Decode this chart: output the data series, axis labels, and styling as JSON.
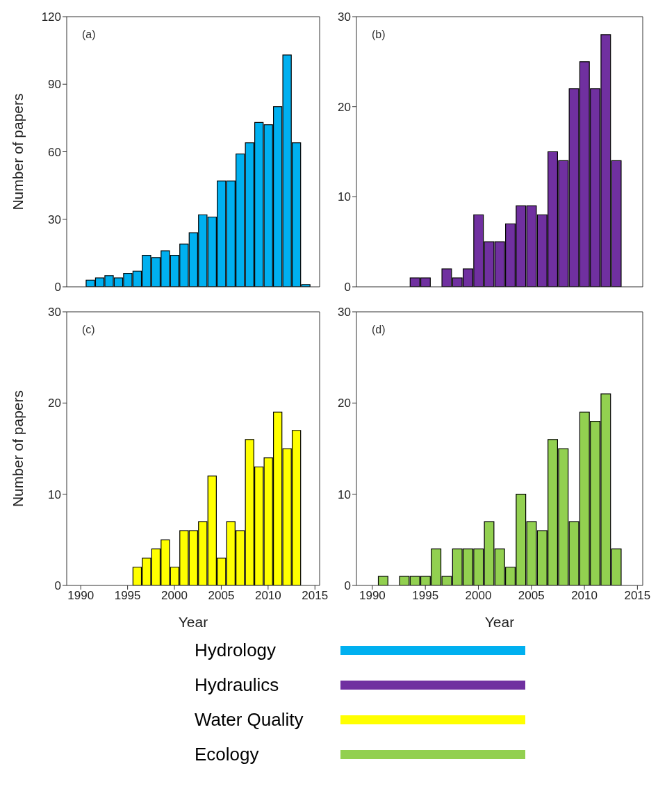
{
  "chart_data": [
    {
      "type": "histogram",
      "title": "(a)",
      "ylabel": "Number of papers",
      "bins": [
        1990.5,
        1991.5,
        1992.5,
        1993.5,
        1994.5,
        1995.5,
        1996.5,
        1997.5,
        1998.5,
        1999.5,
        2000.5,
        2001.5,
        2002.5,
        2003.5,
        2004.5,
        2005.5,
        2006.5,
        2007.5,
        2008.5,
        2009.5,
        2010.5,
        2011.5,
        2012.5,
        2013.5,
        2014.5
      ],
      "series": [
        {
          "name": "Hydrology",
          "color": "#00b0f0",
          "values": [
            3,
            4,
            5,
            4,
            6,
            7,
            14,
            13,
            16,
            14,
            19,
            24,
            32,
            31,
            47,
            47,
            59,
            64,
            73,
            72,
            80,
            103,
            64,
            1
          ]
        }
      ],
      "xlim": [
        1988.5,
        2015.5
      ],
      "xticks": [
        1990,
        1995,
        2000,
        2005,
        2010,
        2015
      ],
      "ylim": [
        0,
        120
      ],
      "yticks": [
        0,
        30,
        60,
        90,
        120
      ],
      "tick_labels": "y",
      "legend": "bottom"
    },
    {
      "type": "histogram",
      "title": "(b)",
      "bins": [
        1993.5,
        1994.5,
        1995.5,
        1996.5,
        1997.5,
        1998.5,
        1999.5,
        2000.5,
        2001.5,
        2002.5,
        2003.5,
        2004.5,
        2005.5,
        2006.5,
        2007.5,
        2008.5,
        2009.5,
        2010.5,
        2011.5,
        2012.5,
        2013.5
      ],
      "series": [
        {
          "name": "Hydraulics",
          "color": "#7030a0",
          "values": [
            1,
            1,
            0,
            2,
            1,
            2,
            8,
            5,
            5,
            7,
            9,
            9,
            8,
            15,
            14,
            22,
            25,
            22,
            28,
            14
          ]
        }
      ],
      "xlim": [
        1988.5,
        2015.5
      ],
      "xticks": [
        1990,
        1995,
        2000,
        2005,
        2010,
        2015
      ],
      "ylim": [
        0,
        30
      ],
      "yticks": [
        0,
        10,
        20,
        30
      ],
      "tick_labels": "y",
      "legend": "bottom"
    },
    {
      "type": "histogram",
      "title": "(c)",
      "xlabel": "Year",
      "ylabel": "Number of papers",
      "bins": [
        1995.5,
        1996.5,
        1997.5,
        1998.5,
        1999.5,
        2000.5,
        2001.5,
        2002.5,
        2003.5,
        2004.5,
        2005.5,
        2006.5,
        2007.5,
        2008.5,
        2009.5,
        2010.5,
        2011.5,
        2012.5,
        2013.5
      ],
      "series": [
        {
          "name": "Water Quality",
          "color": "#ffff00",
          "values": [
            2,
            3,
            4,
            5,
            2,
            6,
            6,
            7,
            12,
            3,
            7,
            6,
            16,
            13,
            14,
            19,
            15,
            17
          ]
        }
      ],
      "xlim": [
        1988.5,
        2015.5
      ],
      "xticks": [
        1990,
        1995,
        2000,
        2005,
        2010,
        2015
      ],
      "ylim": [
        0,
        30
      ],
      "yticks": [
        0,
        10,
        20,
        30
      ],
      "legend": "bottom"
    },
    {
      "type": "histogram",
      "title": "(d)",
      "xlabel": "Year",
      "bins": [
        1990.5,
        1991.5,
        1992.5,
        1993.5,
        1994.5,
        1995.5,
        1996.5,
        1997.5,
        1998.5,
        1999.5,
        2000.5,
        2001.5,
        2002.5,
        2003.5,
        2004.5,
        2005.5,
        2006.5,
        2007.5,
        2008.5,
        2009.5,
        2010.5,
        2011.5,
        2012.5,
        2013.5
      ],
      "series": [
        {
          "name": "Ecology",
          "color": "#92d050",
          "values": [
            1,
            0,
            1,
            1,
            1,
            4,
            1,
            4,
            4,
            4,
            7,
            4,
            2,
            10,
            7,
            6,
            16,
            15,
            7,
            19,
            18,
            21,
            4
          ]
        }
      ],
      "xlim": [
        1988.5,
        2015.5
      ],
      "xticks": [
        1990,
        1995,
        2000,
        2005,
        2010,
        2015
      ],
      "ylim": [
        0,
        30
      ],
      "yticks": [
        0,
        10,
        20,
        30
      ],
      "legend": "bottom"
    }
  ]
}
